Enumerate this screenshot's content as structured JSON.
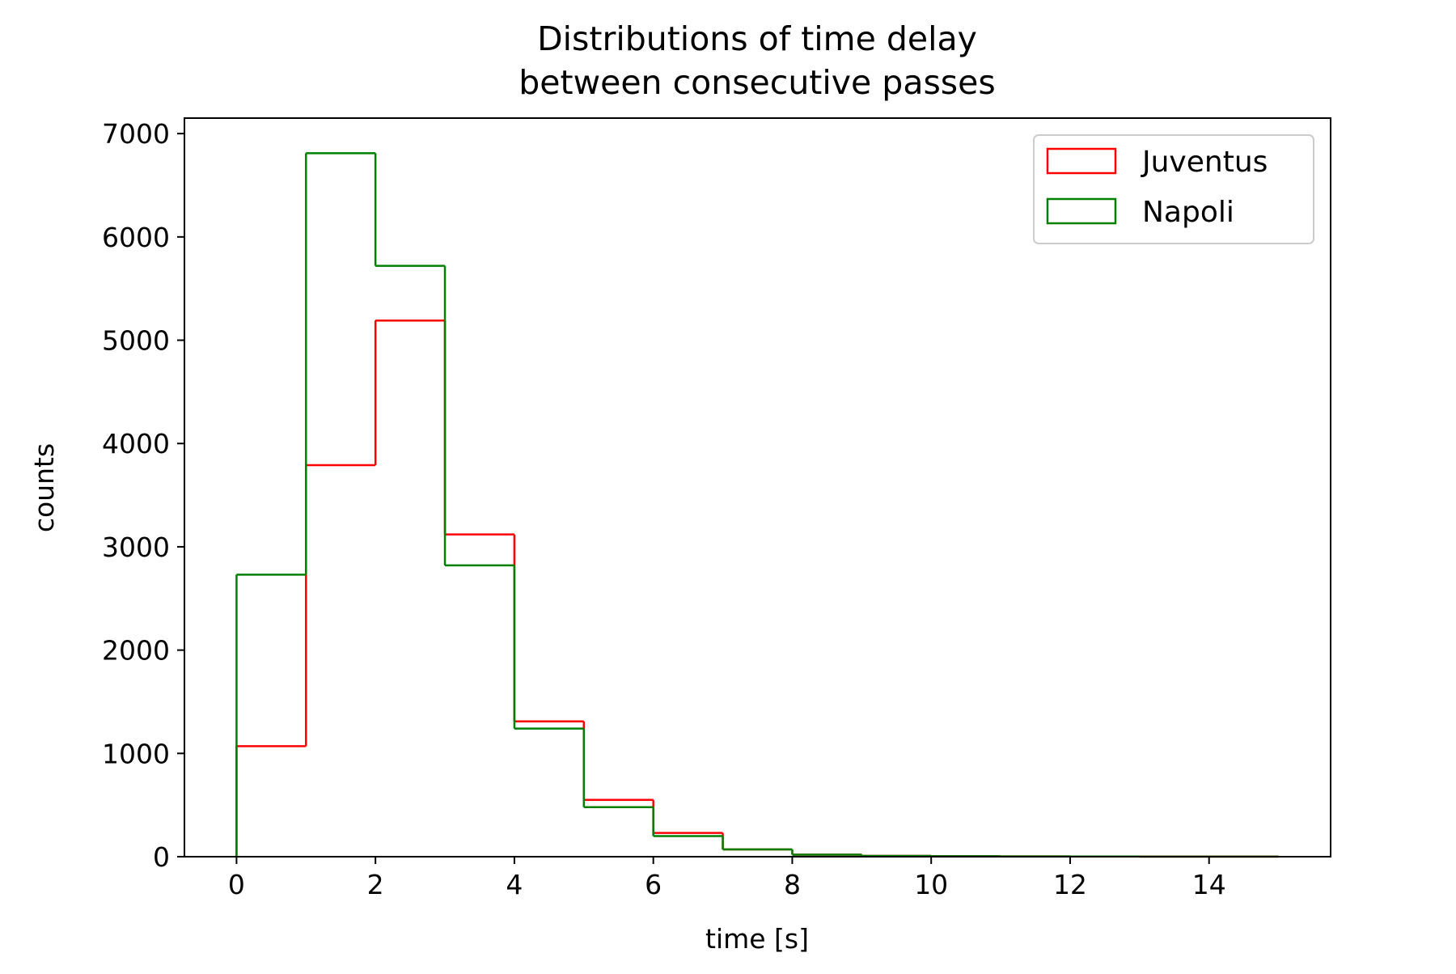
{
  "chart_data": {
    "type": "step-histogram",
    "title_lines": [
      "Distributions of time delay",
      "between consecutive passes"
    ],
    "xlabel": "time [s]",
    "ylabel": "counts",
    "xlim": [
      -0.75,
      15.75
    ],
    "ylim": [
      0,
      7150
    ],
    "xticks": [
      0,
      2,
      4,
      6,
      8,
      10,
      12,
      14
    ],
    "yticks": [
      0,
      1000,
      2000,
      3000,
      4000,
      5000,
      6000,
      7000
    ],
    "grid": false,
    "legend_position": "upper-right",
    "bin_edges": [
      0,
      1,
      2,
      3,
      4,
      5,
      6,
      7,
      8,
      9,
      10,
      11,
      12,
      13,
      14,
      15
    ],
    "series": [
      {
        "name": "Juventus",
        "color": "#ff0000",
        "values": [
          1070,
          3790,
          5190,
          3120,
          1310,
          550,
          230,
          70,
          20,
          8,
          5,
          3,
          2,
          1,
          1
        ]
      },
      {
        "name": "Napoli",
        "color": "#008000",
        "values": [
          2730,
          6810,
          5720,
          2820,
          1240,
          480,
          200,
          70,
          20,
          8,
          5,
          3,
          2,
          1,
          1
        ]
      }
    ]
  }
}
